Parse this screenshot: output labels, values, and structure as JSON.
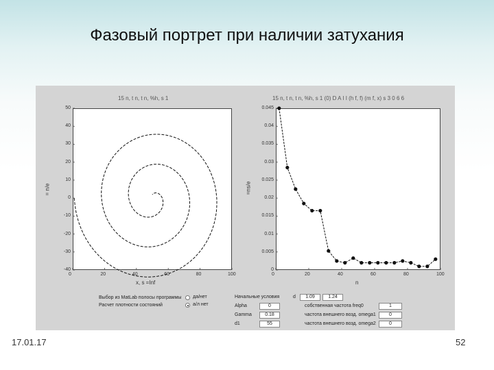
{
  "slide": {
    "title": "Фазовый портрет при наличии затухания",
    "date": "17.01.17",
    "page_number": "52"
  },
  "left_plot": {
    "title": "15 n, t n, t n, %h, s 1",
    "xlabel": "x, s =Inf",
    "ylabel": "= n/e",
    "x_ticks": [
      "0",
      "20",
      "40",
      "60",
      "80",
      "100"
    ],
    "y_ticks": [
      "50",
      "40",
      "30",
      "20",
      "10",
      "0",
      "-10",
      "-20",
      "-30",
      "-40"
    ]
  },
  "right_plot": {
    "title": "15 n, t n, t n, %h, s 1 (0) D A I I (h f, f) (m f, x) s 3 0 6 6",
    "xlabel": "n",
    "ylabel": "=ns/e",
    "x_ticks": [
      "0",
      "20",
      "40",
      "60",
      "80",
      "100"
    ],
    "y_ticks": [
      "0.045",
      "0.04",
      "0.035",
      "0.03",
      "0.025",
      "0.02",
      "0.015",
      "0.01",
      "0.005",
      "0"
    ]
  },
  "controls": {
    "left_label_1": "Выбор из MatLab полосы программы",
    "left_label_2": "Расчет плотности состояний",
    "radio_1": "да/нет",
    "radio_2": "а/л нет",
    "param_header": "Начальные условия",
    "params": [
      {
        "label": "Alpha",
        "value": "0"
      },
      {
        "label": "Gamma",
        "value": "0.18"
      },
      {
        "label": "d1",
        "value": "55"
      }
    ],
    "init_label": "d",
    "init_value_1": "1.09",
    "init_value_2": "1.24",
    "right_params": [
      {
        "label": "собственная частота freq0",
        "value": "1"
      },
      {
        "label": "частота внешнего возд. omega1",
        "value": "0"
      },
      {
        "label": "частота внешнего возд. omega2",
        "value": "0"
      }
    ]
  },
  "chart_data": [
    {
      "type": "line",
      "title": "",
      "xlabel": "x, s =Inf",
      "ylabel": "= n/e",
      "xlim": [
        0,
        100
      ],
      "ylim": [
        -40,
        50
      ],
      "description_series": "damped spiral phase trajectory",
      "spiral": {
        "center": [
          50,
          0
        ],
        "start_radius_x": 49,
        "start_radius_y": 48,
        "turns": 2.75,
        "end_radius_fraction": 0.04
      }
    },
    {
      "type": "line",
      "title": "",
      "xlabel": "n",
      "ylabel": "=ns/e",
      "xlim": [
        0,
        100
      ],
      "ylim": [
        0,
        0.045
      ],
      "x": [
        2,
        7,
        12,
        17,
        22,
        27,
        32,
        37,
        42,
        47,
        52,
        57,
        62,
        67,
        72,
        77,
        82,
        87,
        92,
        97
      ],
      "y": [
        0.045,
        0.0285,
        0.0225,
        0.0185,
        0.0165,
        0.0165,
        0.0053,
        0.0025,
        0.002,
        0.0033,
        0.002,
        0.002,
        0.002,
        0.002,
        0.002,
        0.0025,
        0.002,
        0.001,
        0.001,
        0.003
      ]
    }
  ]
}
